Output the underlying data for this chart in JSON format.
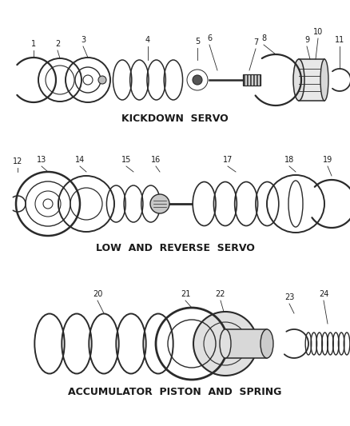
{
  "bg_color": "#ffffff",
  "line_color": "#2a2a2a",
  "section1_label": "KICKDOWN  SERVO",
  "section2_label": "LOW  AND  REVERSE  SERVO",
  "section3_label": "ACCUMULATOR  PISTON  AND  SPRING",
  "label_fontsize": 9,
  "number_fontsize": 7
}
